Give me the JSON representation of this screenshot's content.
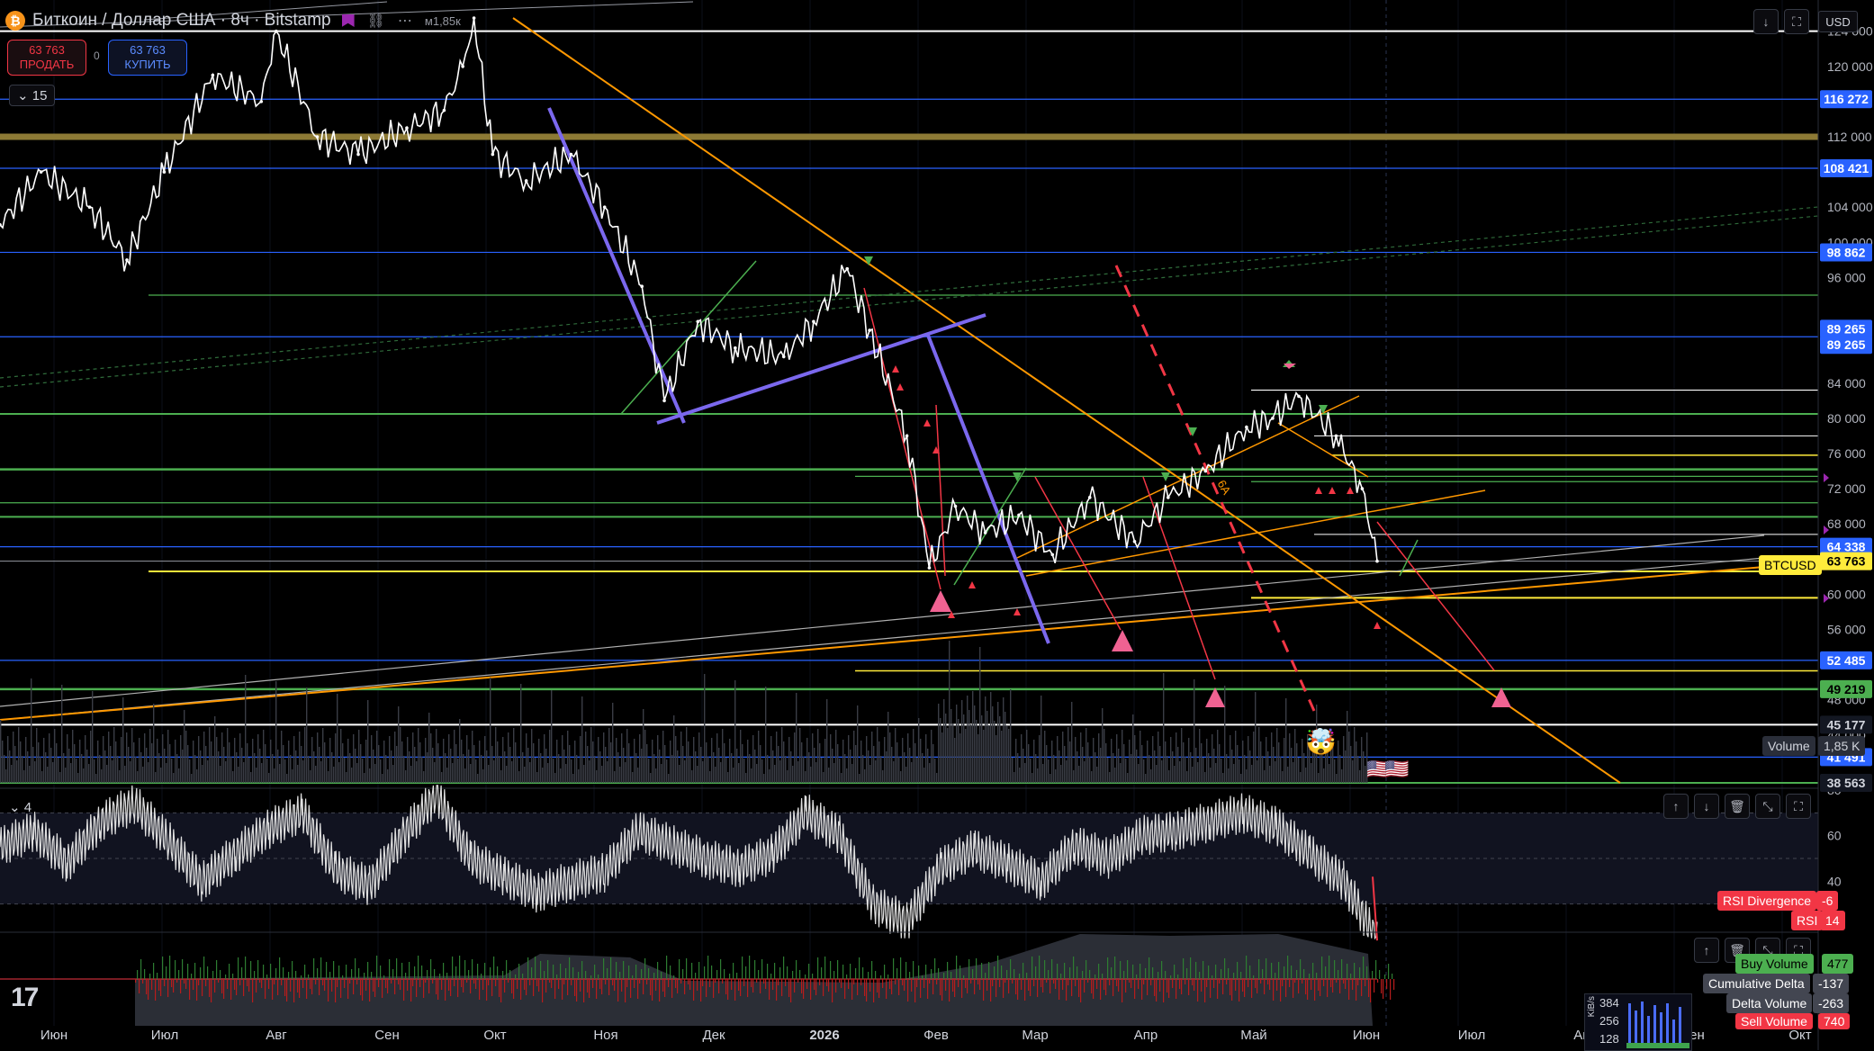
{
  "header": {
    "title": "Биткоин / Доллар США · 8ч · Bitstamp",
    "coin_symbol": "₿",
    "sell_price": "63 763",
    "sell_label": "ПРОДАТЬ",
    "buy_price": "63 763",
    "buy_label": "КУПИТЬ",
    "spread": "0",
    "timeframe_badge": "15",
    "indicator_count": "4",
    "currency": "USD",
    "volume_snippet": "м1,85к"
  },
  "colors": {
    "background": "#000000",
    "candle": "#ffffff",
    "orange": "#ff9800",
    "purple": "#7b68ee",
    "green": "#4caf50",
    "blue": "#2962ff",
    "yellow": "#ffeb3b",
    "red": "#f23645",
    "gold": "#8d7a35"
  },
  "chart_data": [
    {
      "type": "line",
      "series": [
        {
          "x": [
            "2025-06-01",
            "2025-06-12",
            "2025-06-25",
            "2025-07-05",
            "2025-07-15",
            "2025-07-28",
            "2025-08-10",
            "2025-08-14",
            "2025-08-25",
            "2025-09-05",
            "2025-09-18",
            "2025-09-28",
            "2025-10-03",
            "2025-10-06",
            "2025-10-11",
            "2025-10-20",
            "2025-11-01",
            "2025-11-10",
            "2025-11-20",
            "2025-11-26",
            "2025-12-05",
            "2025-12-15",
            "2025-12-28",
            "2026-01-05",
            "2026-01-14",
            "2026-01-20",
            "2026-01-30",
            "2026-02-05",
            "2026-02-12",
            "2026-02-20",
            "2026-03-01",
            "2026-03-10",
            "2026-03-20",
            "2026-04-01",
            "2026-04-10",
            "2026-04-20",
            "2026-05-01",
            "2026-05-08",
            "2026-05-15",
            "2026-05-25",
            "2026-06-01",
            "2026-06-05"
          ],
          "y": [
            102000,
            108000,
            104000,
            98000,
            108000,
            119000,
            116000,
            124000,
            112000,
            110000,
            113000,
            115000,
            120000,
            125500,
            110000,
            107000,
            110000,
            104000,
            95000,
            82000,
            91000,
            88000,
            87000,
            91000,
            97000,
            90000,
            78000,
            63000,
            70000,
            67000,
            69000,
            64500,
            71000,
            66000,
            71000,
            74000,
            79000,
            80000,
            82500,
            78000,
            72000,
            63763
          ]
        }
      ],
      "ylim": [
        38563,
        125500
      ]
    },
    {
      "type": "line",
      "series": [
        {
          "name": "RSI",
          "y": [
            55,
            62,
            48,
            66,
            74,
            58,
            40,
            52,
            63,
            70,
            45,
            38,
            60,
            78,
            50,
            42,
            35,
            40,
            44,
            62,
            56,
            50,
            46,
            52,
            70,
            60,
            30,
            22,
            46,
            54,
            48,
            40,
            56,
            50,
            60,
            62,
            66,
            70,
            64,
            52,
            40,
            14
          ]
        }
      ],
      "ylim": [
        20,
        80
      ]
    }
  ],
  "axis": {
    "y_ticks": [
      "124 000",
      "120 000",
      "112 000",
      "104 000",
      "100 000",
      "96 000",
      "88 000",
      "84 000",
      "80 000",
      "76 000",
      "72 000",
      "68 000",
      "60 000",
      "56 000",
      "48 000",
      "44 000"
    ],
    "rsi_ticks": [
      "80",
      "60",
      "40"
    ],
    "x_labels": [
      "Июн",
      "Июл",
      "Авг",
      "Сен",
      "Окт",
      "Ноя",
      "Дек",
      "2026",
      "Фев",
      "Мар",
      "Апр",
      "Май",
      "Июн",
      "Июл",
      "Авг",
      "Сен",
      "Окт"
    ]
  },
  "price_badges": [
    {
      "value": "116 272",
      "price": 116272,
      "bg": "#2962ff",
      "fg": "#ffffff"
    },
    {
      "value": "108 421",
      "price": 108421,
      "bg": "#2962ff",
      "fg": "#ffffff"
    },
    {
      "value": "98 862",
      "price": 98862,
      "bg": "#2962ff",
      "fg": "#ffffff"
    },
    {
      "value": "89 265",
      "price": 90180,
      "bg": "#2962ff",
      "fg": "#ffffff"
    },
    {
      "value": "89 265",
      "price": 88350,
      "bg": "#2962ff",
      "fg": "#ffffff"
    },
    {
      "value": "64 338",
      "price": 65400,
      "bg": "#2962ff",
      "fg": "#ffffff"
    },
    {
      "value": "63 763",
      "price": 63763,
      "bg": "#ffeb3b",
      "fg": "#000000"
    },
    {
      "value": "52 485",
      "price": 52485,
      "bg": "#2962ff",
      "fg": "#ffffff"
    },
    {
      "value": "49 219",
      "price": 49219,
      "bg": "#4caf50",
      "fg": "#000000"
    },
    {
      "value": "45 177",
      "price": 45177,
      "bg": "#131722",
      "fg": "#d1d4dc"
    },
    {
      "value": "41 491",
      "price": 41491,
      "bg": "#2962ff",
      "fg": "#ffffff"
    },
    {
      "value": "38 563",
      "price": 38563,
      "bg": "#131722",
      "fg": "#d1d4dc"
    }
  ],
  "labels": {
    "btcusd": "BTCUSD",
    "volume": "Volume",
    "volume_value": "1,85 K",
    "rsi_divergence": "RSI Divergence",
    "rsi_divergence_value": "-6",
    "rsi": "RSI",
    "rsi_value": "14",
    "buy_volume": "Buy Volume",
    "buy_volume_value": "477",
    "cumulative_delta": "Cumulative Delta",
    "cumulative_delta_value": "-137",
    "delta_volume": "Delta Volume",
    "delta_volume_value": "-263",
    "sell_volume": "Sell Volume",
    "sell_volume_value": "740",
    "drawing_label": "6A"
  },
  "net_widget": {
    "unit": "KiB/s",
    "ticks": [
      "384",
      "256",
      "128"
    ]
  },
  "icons": {
    "coin": "bitcoin-icon",
    "link": "link-icon",
    "more": "more-icon",
    "logo": "tradingview-logo"
  }
}
